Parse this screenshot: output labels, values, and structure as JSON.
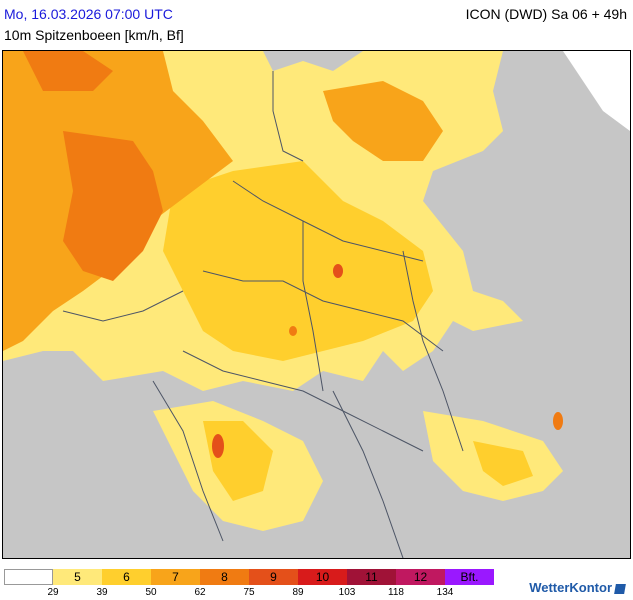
{
  "header": {
    "date_line": "Mo, 16.03.2026 07:00 UTC",
    "param_line": "10m Spitzenboeen [km/h, Bf]",
    "model_line": "ICON (DWD) Sa 06 + 49h"
  },
  "legend": {
    "classes": [
      {
        "label": "",
        "color": "#ffffff"
      },
      {
        "label": "5",
        "color": "#ffe97a"
      },
      {
        "label": "6",
        "color": "#ffcf2d"
      },
      {
        "label": "7",
        "color": "#f8a41a"
      },
      {
        "label": "8",
        "color": "#f07b12"
      },
      {
        "label": "9",
        "color": "#e4501a"
      },
      {
        "label": "10",
        "color": "#d81b1b"
      },
      {
        "label": "11",
        "color": "#a01237"
      },
      {
        "label": "12",
        "color": "#c01860"
      },
      {
        "label": "Bft.",
        "color": "#9a18ff"
      }
    ],
    "ticks": [
      "29",
      "39",
      "50",
      "62",
      "75",
      "89",
      "103",
      "118",
      "134"
    ]
  },
  "colors": {
    "sea_land_background": "#c6c6c6",
    "border": "#4d5566"
  },
  "branding": {
    "logo_text": "WetterKontor"
  }
}
